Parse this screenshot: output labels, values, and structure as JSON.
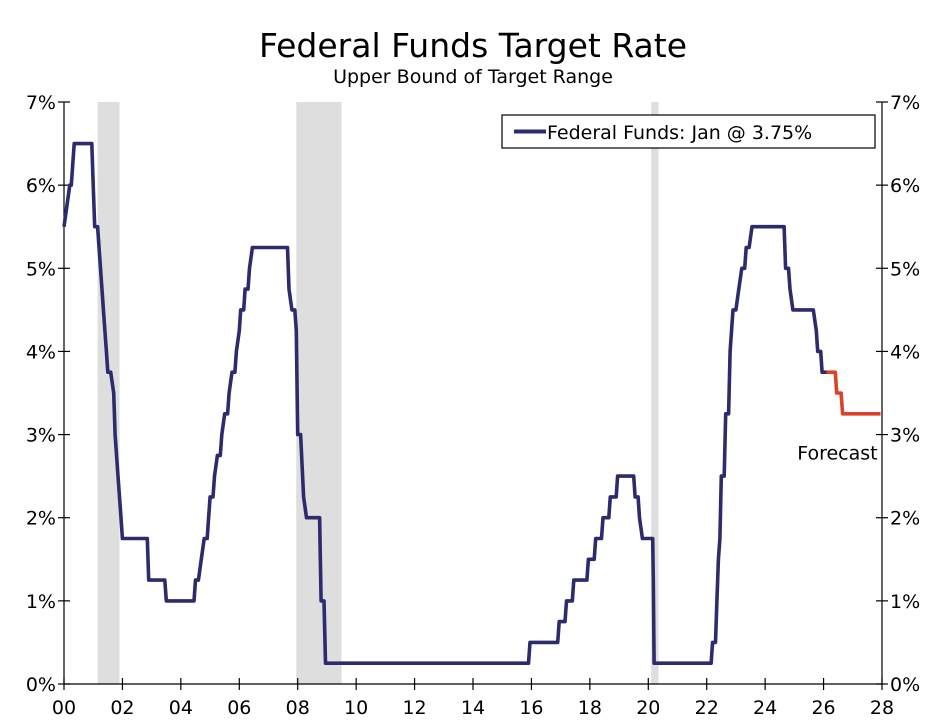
{
  "chart_data": {
    "type": "line",
    "title": "Federal Funds Target Rate",
    "subtitle": "Upper Bound of Target Range",
    "xlabel": "",
    "ylabel": "",
    "xlim": [
      2000,
      2028
    ],
    "ylim": [
      0,
      7
    ],
    "x_ticks": [
      {
        "value": 2000,
        "label": "00"
      },
      {
        "value": 2002,
        "label": "02"
      },
      {
        "value": 2004,
        "label": "04"
      },
      {
        "value": 2006,
        "label": "06"
      },
      {
        "value": 2008,
        "label": "08"
      },
      {
        "value": 2010,
        "label": "10"
      },
      {
        "value": 2012,
        "label": "12"
      },
      {
        "value": 2014,
        "label": "14"
      },
      {
        "value": 2016,
        "label": "16"
      },
      {
        "value": 2018,
        "label": "18"
      },
      {
        "value": 2020,
        "label": "20"
      },
      {
        "value": 2022,
        "label": "22"
      },
      {
        "value": 2024,
        "label": "24"
      },
      {
        "value": 2026,
        "label": "26"
      },
      {
        "value": 2028,
        "label": "28"
      }
    ],
    "y_ticks": [
      {
        "value": 0,
        "label": "0%"
      },
      {
        "value": 1,
        "label": "1%"
      },
      {
        "value": 2,
        "label": "2%"
      },
      {
        "value": 3,
        "label": "3%"
      },
      {
        "value": 4,
        "label": "4%"
      },
      {
        "value": 5,
        "label": "5%"
      },
      {
        "value": 6,
        "label": "6%"
      },
      {
        "value": 7,
        "label": "7%"
      }
    ],
    "recessions": [
      {
        "start": 2001.15,
        "end": 2001.9
      },
      {
        "start": 2007.95,
        "end": 2009.5
      },
      {
        "start": 2020.1,
        "end": 2020.35
      }
    ],
    "legend": {
      "label": "Federal Funds: Jan @ 3.75%",
      "position": "top-right"
    },
    "annotations": [
      {
        "text": "Forecast",
        "x": 2027.85,
        "y": 2.7
      }
    ],
    "colors": {
      "actual": "#2e2a6e",
      "forecast": "#d9432a",
      "recession": "#dedede",
      "axis": "#000000"
    },
    "series": [
      {
        "name": "Federal Funds",
        "role": "actual",
        "points": [
          [
            2000.0,
            5.5
          ],
          [
            2000.1,
            5.75
          ],
          [
            2000.2,
            6.0
          ],
          [
            2000.25,
            6.0
          ],
          [
            2000.35,
            6.5
          ],
          [
            2000.95,
            6.5
          ],
          [
            2001.0,
            6.0
          ],
          [
            2001.05,
            5.5
          ],
          [
            2001.15,
            5.5
          ],
          [
            2001.25,
            5.0
          ],
          [
            2001.35,
            4.5
          ],
          [
            2001.45,
            4.0
          ],
          [
            2001.5,
            3.75
          ],
          [
            2001.6,
            3.75
          ],
          [
            2001.7,
            3.5
          ],
          [
            2001.75,
            3.0
          ],
          [
            2001.85,
            2.5
          ],
          [
            2001.95,
            2.0
          ],
          [
            2002.0,
            1.75
          ],
          [
            2002.85,
            1.75
          ],
          [
            2002.9,
            1.25
          ],
          [
            2003.45,
            1.25
          ],
          [
            2003.5,
            1.0
          ],
          [
            2004.45,
            1.0
          ],
          [
            2004.5,
            1.25
          ],
          [
            2004.6,
            1.25
          ],
          [
            2004.7,
            1.5
          ],
          [
            2004.8,
            1.75
          ],
          [
            2004.9,
            1.75
          ],
          [
            2004.95,
            2.0
          ],
          [
            2005.0,
            2.25
          ],
          [
            2005.1,
            2.25
          ],
          [
            2005.15,
            2.5
          ],
          [
            2005.25,
            2.75
          ],
          [
            2005.35,
            2.75
          ],
          [
            2005.4,
            3.0
          ],
          [
            2005.5,
            3.25
          ],
          [
            2005.6,
            3.25
          ],
          [
            2005.65,
            3.5
          ],
          [
            2005.75,
            3.75
          ],
          [
            2005.85,
            3.75
          ],
          [
            2005.9,
            4.0
          ],
          [
            2006.0,
            4.25
          ],
          [
            2006.05,
            4.5
          ],
          [
            2006.15,
            4.5
          ],
          [
            2006.2,
            4.75
          ],
          [
            2006.3,
            4.75
          ],
          [
            2006.35,
            5.0
          ],
          [
            2006.45,
            5.25
          ],
          [
            2007.65,
            5.25
          ],
          [
            2007.7,
            4.75
          ],
          [
            2007.8,
            4.5
          ],
          [
            2007.9,
            4.5
          ],
          [
            2007.95,
            4.25
          ],
          [
            2008.0,
            3.0
          ],
          [
            2008.1,
            3.0
          ],
          [
            2008.2,
            2.25
          ],
          [
            2008.3,
            2.0
          ],
          [
            2008.75,
            2.0
          ],
          [
            2008.8,
            1.0
          ],
          [
            2008.9,
            1.0
          ],
          [
            2008.95,
            0.25
          ],
          [
            2015.9,
            0.25
          ],
          [
            2015.95,
            0.5
          ],
          [
            2016.9,
            0.5
          ],
          [
            2016.95,
            0.75
          ],
          [
            2017.15,
            0.75
          ],
          [
            2017.2,
            1.0
          ],
          [
            2017.4,
            1.0
          ],
          [
            2017.45,
            1.25
          ],
          [
            2017.9,
            1.25
          ],
          [
            2017.95,
            1.5
          ],
          [
            2018.15,
            1.5
          ],
          [
            2018.2,
            1.75
          ],
          [
            2018.4,
            1.75
          ],
          [
            2018.45,
            2.0
          ],
          [
            2018.65,
            2.0
          ],
          [
            2018.7,
            2.25
          ],
          [
            2018.9,
            2.25
          ],
          [
            2018.95,
            2.5
          ],
          [
            2019.5,
            2.5
          ],
          [
            2019.55,
            2.25
          ],
          [
            2019.65,
            2.25
          ],
          [
            2019.7,
            2.0
          ],
          [
            2019.8,
            1.75
          ],
          [
            2020.15,
            1.75
          ],
          [
            2020.17,
            1.25
          ],
          [
            2020.2,
            0.25
          ],
          [
            2022.15,
            0.25
          ],
          [
            2022.2,
            0.5
          ],
          [
            2022.3,
            0.5
          ],
          [
            2022.35,
            1.0
          ],
          [
            2022.4,
            1.5
          ],
          [
            2022.45,
            1.75
          ],
          [
            2022.5,
            2.5
          ],
          [
            2022.6,
            2.5
          ],
          [
            2022.65,
            3.25
          ],
          [
            2022.75,
            3.25
          ],
          [
            2022.8,
            4.0
          ],
          [
            2022.9,
            4.5
          ],
          [
            2023.0,
            4.5
          ],
          [
            2023.1,
            4.75
          ],
          [
            2023.2,
            5.0
          ],
          [
            2023.3,
            5.0
          ],
          [
            2023.35,
            5.25
          ],
          [
            2023.45,
            5.25
          ],
          [
            2023.55,
            5.5
          ],
          [
            2024.65,
            5.5
          ],
          [
            2024.7,
            5.0
          ],
          [
            2024.8,
            5.0
          ],
          [
            2024.85,
            4.75
          ],
          [
            2024.95,
            4.5
          ],
          [
            2025.65,
            4.5
          ],
          [
            2025.75,
            4.25
          ],
          [
            2025.8,
            4.0
          ],
          [
            2025.9,
            4.0
          ],
          [
            2025.95,
            3.75
          ],
          [
            2026.1,
            3.75
          ]
        ]
      },
      {
        "name": "Forecast",
        "role": "forecast",
        "points": [
          [
            2026.1,
            3.75
          ],
          [
            2026.4,
            3.75
          ],
          [
            2026.45,
            3.5
          ],
          [
            2026.6,
            3.5
          ],
          [
            2026.65,
            3.25
          ],
          [
            2027.95,
            3.25
          ]
        ]
      }
    ]
  }
}
